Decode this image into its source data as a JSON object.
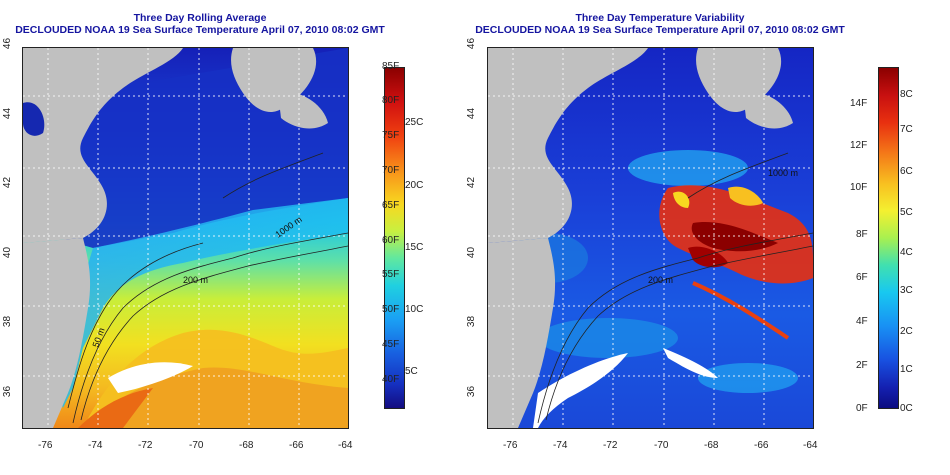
{
  "left": {
    "title": "Three Day Rolling Average",
    "subtitle": "DECLOUDED NOAA 19 Sea Surface Temperature April 07, 2010 08:02 GMT",
    "lon_ticks": [
      "-76",
      "-74",
      "-72",
      "-70",
      "-68",
      "-66",
      "-64"
    ],
    "lat_ticks": [
      "36",
      "38",
      "40",
      "42",
      "44",
      "46"
    ],
    "colorbar_f": [
      "85F",
      "80F",
      "75F",
      "70F",
      "65F",
      "60F",
      "55F",
      "50F",
      "45F",
      "40F"
    ],
    "colorbar_c": [
      "25C",
      "20C",
      "15C",
      "10C",
      "5C"
    ],
    "contours": [
      "200 m",
      "1000 m",
      "50 m"
    ]
  },
  "right": {
    "title": "Three Day Temperature Variability",
    "subtitle": "DECLOUDED NOAA 19 Sea Surface Temperature April 07, 2010 08:02 GMT",
    "lon_ticks": [
      "-76",
      "-74",
      "-72",
      "-70",
      "-68",
      "-66",
      "-64"
    ],
    "lat_ticks": [
      "36",
      "38",
      "40",
      "42",
      "44",
      "46"
    ],
    "colorbar_f": [
      "14F",
      "12F",
      "10F",
      "8F",
      "6F",
      "4F",
      "2F",
      "0F"
    ],
    "colorbar_c": [
      "8C",
      "7C",
      "6C",
      "5C",
      "4C",
      "3C",
      "2C",
      "1C",
      "0C"
    ],
    "contours": [
      "200 m",
      "1000 m"
    ]
  }
}
